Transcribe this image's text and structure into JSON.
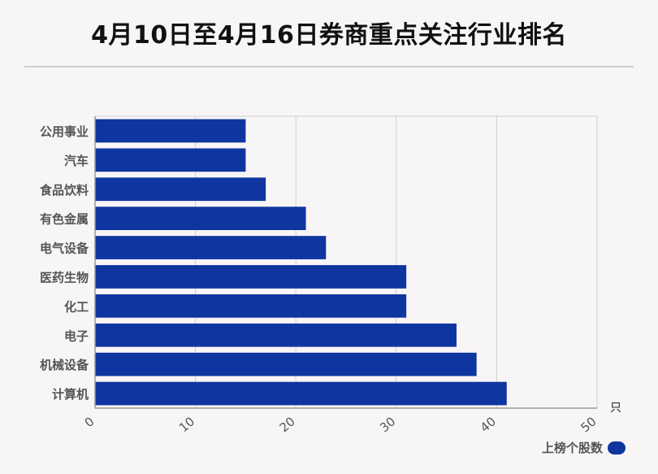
{
  "title": "4月10日至4月16日券商重点关注行业排名",
  "colors": {
    "bar": "#0f35a0",
    "grid": "#d0d0d0",
    "axis": "#999999",
    "label": "#555555"
  },
  "legend": {
    "label": "上榜个股数"
  },
  "chart_data": {
    "type": "bar",
    "orientation": "horizontal",
    "categories": [
      "公用事业",
      "汽车",
      "食品饮料",
      "有色金属",
      "电气设备",
      "医药生物",
      "化工",
      "电子",
      "机械设备",
      "计算机"
    ],
    "series": [
      {
        "name": "上榜个股数",
        "values": [
          15,
          15,
          17,
          21,
          23,
          31,
          31,
          36,
          38,
          41
        ]
      }
    ],
    "xlim": [
      0,
      50
    ],
    "xticks": [
      0,
      10,
      20,
      30,
      40,
      50
    ],
    "xunit": "只",
    "grid": true,
    "legend_position": "bottom-right"
  }
}
